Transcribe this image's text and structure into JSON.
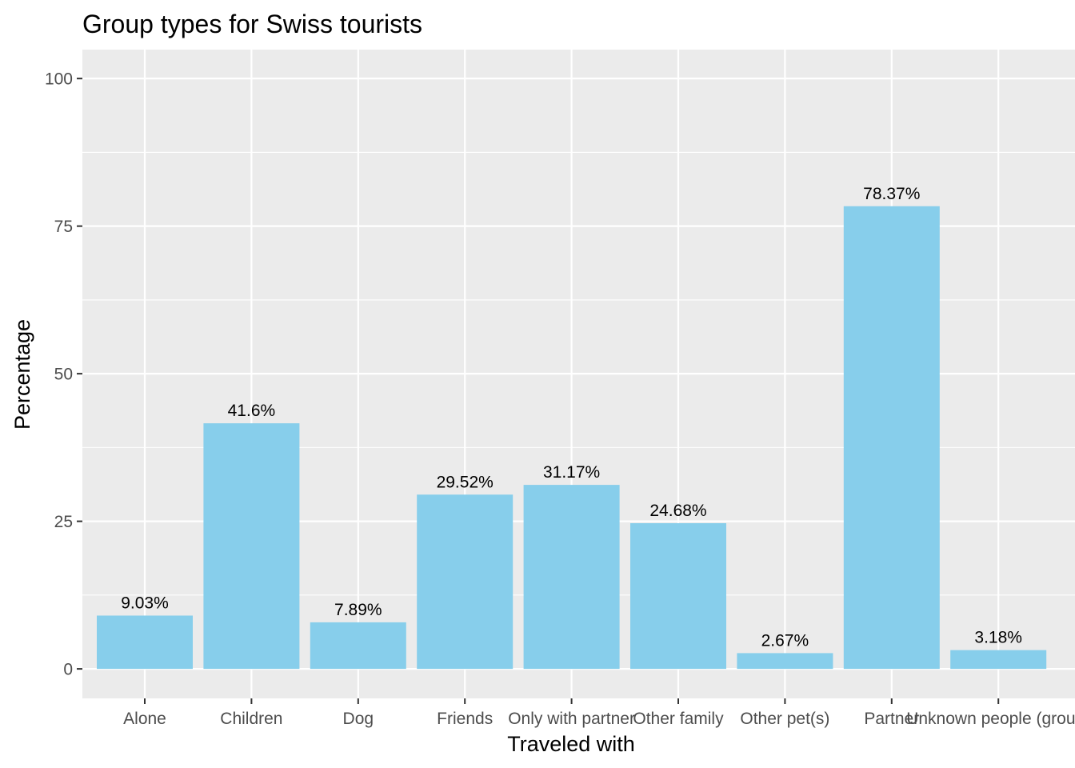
{
  "chart_data": {
    "type": "bar",
    "title": "Group types for Swiss tourists",
    "xlabel": "Traveled with",
    "ylabel": "Percentage",
    "categories": [
      "Alone",
      "Children",
      "Dog",
      "Friends",
      "Only with partner",
      "Other family",
      "Other pet(s)",
      "Partner",
      "Unknown people (group)"
    ],
    "values": [
      9.03,
      41.6,
      7.89,
      29.52,
      31.17,
      24.68,
      2.67,
      78.37,
      3.18
    ],
    "value_labels": [
      "9.03%",
      "41.6%",
      "7.89%",
      "29.52%",
      "31.17%",
      "24.68%",
      "2.67%",
      "78.37%",
      "3.18%"
    ],
    "yticks": [
      0,
      25,
      50,
      75,
      100
    ],
    "ylim": [
      -5,
      104.9
    ],
    "grid": true,
    "colors": {
      "bar": "#87CEEB",
      "panel": "#EBEBEB",
      "grid": "#FFFFFF"
    }
  }
}
